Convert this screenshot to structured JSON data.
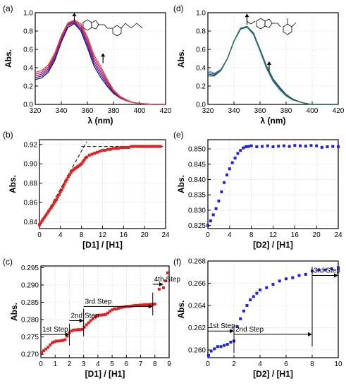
{
  "chart_data": [
    {
      "id": "a",
      "panel_label": "(a)",
      "type": "line",
      "xlabel": "λ (nm)",
      "ylabel": "Abs.",
      "xlim": [
        320,
        420
      ],
      "ylim": [
        0.0,
        1.0
      ],
      "xticks": [
        "320",
        "340",
        "360",
        "380",
        "400",
        "420"
      ],
      "yticks": [
        "0.0",
        "0.2",
        "0.4",
        "0.6",
        "0.8",
        "1.0"
      ],
      "x": [
        320,
        325,
        330,
        335,
        340,
        345,
        350,
        355,
        360,
        365,
        370,
        375,
        380,
        385,
        390,
        395,
        400,
        405,
        410,
        415,
        420
      ],
      "series": [
        {
          "color": "#1a1a7a",
          "values": [
            0.27,
            0.29,
            0.35,
            0.48,
            0.68,
            0.84,
            0.88,
            0.8,
            0.62,
            0.42,
            0.3,
            0.2,
            0.12,
            0.07,
            0.04,
            0.02,
            0.01,
            0.005,
            0.0,
            0.0,
            0.0
          ]
        },
        {
          "color": "#5a1f8c",
          "values": [
            0.29,
            0.31,
            0.37,
            0.5,
            0.7,
            0.86,
            0.89,
            0.82,
            0.65,
            0.45,
            0.33,
            0.22,
            0.13,
            0.07,
            0.04,
            0.02,
            0.01,
            0.005,
            0.0,
            0.0,
            0.0
          ]
        },
        {
          "color": "#8a2090",
          "values": [
            0.31,
            0.33,
            0.39,
            0.52,
            0.72,
            0.87,
            0.9,
            0.84,
            0.68,
            0.48,
            0.36,
            0.24,
            0.14,
            0.08,
            0.04,
            0.02,
            0.01,
            0.005,
            0.0,
            0.0,
            0.0
          ]
        },
        {
          "color": "#c2286e",
          "values": [
            0.33,
            0.35,
            0.41,
            0.54,
            0.73,
            0.88,
            0.91,
            0.86,
            0.71,
            0.51,
            0.39,
            0.26,
            0.15,
            0.08,
            0.04,
            0.02,
            0.01,
            0.005,
            0.0,
            0.0,
            0.0
          ]
        },
        {
          "color": "#e04a3a",
          "values": [
            0.35,
            0.37,
            0.43,
            0.56,
            0.75,
            0.89,
            0.92,
            0.88,
            0.74,
            0.54,
            0.42,
            0.28,
            0.16,
            0.09,
            0.05,
            0.02,
            0.01,
            0.005,
            0.0,
            0.0,
            0.0
          ]
        }
      ],
      "arrows": [
        {
          "x": 350,
          "y_from": 0.9,
          "y_to": 1.0
        },
        {
          "x": 372,
          "y_from": 0.45,
          "y_to": 0.56
        }
      ]
    },
    {
      "id": "d",
      "panel_label": "(d)",
      "type": "line",
      "xlabel": "λ (nm)",
      "ylabel": "Abs.",
      "xlim": [
        320,
        420
      ],
      "ylim": [
        0.0,
        1.0
      ],
      "xticks": [
        "320",
        "340",
        "360",
        "380",
        "400",
        "420"
      ],
      "yticks": [
        "0.0",
        "0.2",
        "0.4",
        "0.6",
        "0.8",
        "1.0"
      ],
      "x": [
        320,
        325,
        330,
        335,
        340,
        345,
        350,
        355,
        360,
        365,
        370,
        375,
        380,
        385,
        390,
        395,
        400,
        405,
        410,
        415,
        420
      ],
      "series": [
        {
          "color": "#3aa0c0",
          "values": [
            0.37,
            0.34,
            0.38,
            0.5,
            0.69,
            0.82,
            0.84,
            0.76,
            0.58,
            0.39,
            0.25,
            0.16,
            0.09,
            0.05,
            0.03,
            0.01,
            0.0,
            0.0,
            0.0,
            0.0,
            0.0
          ]
        },
        {
          "color": "#2a5aa0",
          "values": [
            0.35,
            0.33,
            0.38,
            0.5,
            0.69,
            0.82,
            0.845,
            0.77,
            0.59,
            0.4,
            0.26,
            0.17,
            0.1,
            0.05,
            0.03,
            0.01,
            0.0,
            0.0,
            0.0,
            0.0,
            0.0
          ]
        },
        {
          "color": "#6a2a8a",
          "values": [
            0.33,
            0.32,
            0.37,
            0.5,
            0.69,
            0.83,
            0.85,
            0.77,
            0.6,
            0.41,
            0.27,
            0.18,
            0.1,
            0.06,
            0.03,
            0.01,
            0.0,
            0.0,
            0.0,
            0.0,
            0.0
          ]
        },
        {
          "color": "#1f7a3a",
          "values": [
            0.31,
            0.31,
            0.37,
            0.5,
            0.69,
            0.83,
            0.85,
            0.78,
            0.6,
            0.42,
            0.28,
            0.19,
            0.11,
            0.06,
            0.03,
            0.01,
            0.0,
            0.0,
            0.0,
            0.0,
            0.0
          ]
        }
      ],
      "arrows": [
        {
          "x": 350,
          "y_from": 0.87,
          "y_to": 0.99
        },
        {
          "x": 367,
          "y_from": 0.37,
          "y_to": 0.47
        }
      ]
    },
    {
      "id": "b",
      "panel_label": "(b)",
      "type": "scatter",
      "xlabel": "[D1] / [H1]",
      "ylabel": "Abs.",
      "xlim": [
        0,
        24
      ],
      "ylim": [
        0.833,
        0.925
      ],
      "xticks": [
        "0",
        "4",
        "8",
        "12",
        "16",
        "20",
        "24"
      ],
      "xtick_values": [
        0,
        4,
        8,
        12,
        16,
        20,
        24
      ],
      "yticks": [
        "0.84",
        "0.86",
        "0.88",
        "0.90",
        "0.92"
      ],
      "ytick_values": [
        0.84,
        0.86,
        0.88,
        0.9,
        0.92
      ],
      "marker_color": "#e02020",
      "x": [
        0,
        0.25,
        0.5,
        0.75,
        1,
        1.25,
        1.5,
        1.75,
        2,
        2.25,
        2.5,
        2.75,
        3,
        3.25,
        3.5,
        3.75,
        4,
        4.25,
        4.5,
        4.75,
        5,
        5.25,
        5.5,
        5.75,
        6,
        6.25,
        6.5,
        6.75,
        7,
        7.25,
        7.5,
        7.75,
        8,
        8.25,
        8.5,
        8.75,
        9,
        9.5,
        10,
        10.5,
        11,
        11.5,
        12,
        12.5,
        13,
        13.5,
        14,
        14.5,
        15,
        15.5,
        16,
        16.5,
        17,
        17.5,
        18,
        18.5,
        19,
        19.5,
        20,
        20.5,
        21,
        21.5,
        22,
        22.5,
        23
      ],
      "y": [
        0.837,
        0.839,
        0.841,
        0.843,
        0.845,
        0.847,
        0.849,
        0.851,
        0.853,
        0.855,
        0.857,
        0.859,
        0.861,
        0.863,
        0.866,
        0.868,
        0.871,
        0.873,
        0.876,
        0.879,
        0.882,
        0.884,
        0.887,
        0.889,
        0.891,
        0.893,
        0.894,
        0.895,
        0.896,
        0.897,
        0.898,
        0.899,
        0.9,
        0.902,
        0.904,
        0.906,
        0.907,
        0.909,
        0.91,
        0.911,
        0.912,
        0.913,
        0.914,
        0.914,
        0.915,
        0.915,
        0.916,
        0.916,
        0.916,
        0.917,
        0.917,
        0.917,
        0.917,
        0.918,
        0.918,
        0.918,
        0.918,
        0.918,
        0.918,
        0.918,
        0.918,
        0.918,
        0.918,
        0.918,
        0.918
      ],
      "dashed_lines": [
        [
          0,
          0.835,
          9,
          0.923
        ],
        [
          8,
          0.918,
          23.5,
          0.918
        ]
      ]
    },
    {
      "id": "e",
      "panel_label": "(e)",
      "type": "scatter",
      "xlabel": "[D2] / [H1]",
      "ylabel": "Abs.",
      "xlim": [
        0,
        24
      ],
      "ylim": [
        0.824,
        0.853
      ],
      "xticks": [
        "0",
        "4",
        "8",
        "12",
        "16",
        "20",
        "24"
      ],
      "xtick_values": [
        0,
        4,
        8,
        12,
        16,
        20,
        24
      ],
      "yticks": [
        "0.825",
        "0.830",
        "0.835",
        "0.840",
        "0.845",
        "0.850"
      ],
      "ytick_values": [
        0.825,
        0.83,
        0.835,
        0.84,
        0.845,
        0.85
      ],
      "marker_color": "#2020e0",
      "x": [
        0,
        0.5,
        1,
        1.5,
        2,
        2.5,
        3,
        3.5,
        4,
        4.5,
        5,
        5.5,
        6,
        6.5,
        7,
        7.5,
        8,
        9,
        10,
        11,
        12,
        13,
        14,
        15,
        16,
        17,
        18,
        19,
        20,
        21,
        22,
        23,
        24
      ],
      "y": [
        0.825,
        0.8265,
        0.8285,
        0.8305,
        0.833,
        0.836,
        0.839,
        0.8415,
        0.8435,
        0.8455,
        0.847,
        0.8485,
        0.8495,
        0.8503,
        0.8507,
        0.8508,
        0.851,
        0.8507,
        0.8508,
        0.851,
        0.8507,
        0.8509,
        0.851,
        0.8508,
        0.8511,
        0.851,
        0.8509,
        0.8511,
        0.851,
        0.8505,
        0.8507,
        0.8508,
        0.8507
      ]
    },
    {
      "id": "c",
      "panel_label": "(c)",
      "type": "scatter",
      "xlabel": "[D1] / [H1]",
      "ylabel": "Abs.",
      "xlim": [
        0,
        9
      ],
      "ylim": [
        0.269,
        0.2955
      ],
      "xticks": [
        "0",
        "1",
        "2",
        "3",
        "4",
        "5",
        "6",
        "7",
        "8",
        "9"
      ],
      "xtick_values": [
        0,
        1,
        2,
        3,
        4,
        5,
        6,
        7,
        8,
        9
      ],
      "yticks": [
        "0.270",
        "0.275",
        "0.280",
        "0.285",
        "0.290",
        "0.295"
      ],
      "ytick_values": [
        0.27,
        0.275,
        0.28,
        0.285,
        0.29,
        0.295
      ],
      "marker_color": "#e02020",
      "x": [
        0.05,
        0.2,
        0.35,
        0.5,
        0.65,
        0.8,
        0.95,
        1.1,
        1.25,
        1.4,
        1.55,
        1.7,
        1.85,
        2.0,
        2.15,
        2.3,
        2.45,
        2.6,
        2.75,
        2.9,
        3.05,
        3.2,
        3.35,
        3.5,
        3.65,
        3.8,
        3.95,
        4.1,
        4.25,
        4.4,
        4.55,
        4.7,
        4.85,
        5.0,
        5.15,
        5.3,
        5.45,
        5.6,
        5.75,
        5.9,
        6.05,
        6.2,
        6.35,
        6.5,
        6.65,
        6.8,
        6.95,
        7.1,
        7.25,
        7.4,
        7.55,
        7.7,
        7.85,
        8.0,
        8.3,
        8.6,
        8.75,
        8.9
      ],
      "y": [
        0.2705,
        0.271,
        0.2715,
        0.272,
        0.2727,
        0.2733,
        0.2736,
        0.2738,
        0.2738,
        0.2739,
        0.274,
        0.2742,
        0.2752,
        0.2762,
        0.2767,
        0.277,
        0.277,
        0.2771,
        0.2771,
        0.2772,
        0.2778,
        0.2785,
        0.2791,
        0.2797,
        0.2802,
        0.2808,
        0.2812,
        0.2813,
        0.2813,
        0.2814,
        0.2815,
        0.2819,
        0.2824,
        0.2828,
        0.2831,
        0.2831,
        0.2833,
        0.2835,
        0.2836,
        0.2837,
        0.2838,
        0.2838,
        0.2839,
        0.284,
        0.2841,
        0.2841,
        0.2842,
        0.2842,
        0.2843,
        0.2843,
        0.2843,
        0.2844,
        0.2844,
        0.2845,
        0.2888,
        0.2892,
        0.2912,
        0.2935
      ],
      "annotations": [
        {
          "text": "1st Step",
          "x": 0,
          "y": 0.2757,
          "x_end": 2,
          "vline_x": 2,
          "vline_y": [
            0.2725,
            0.2788
          ]
        },
        {
          "text": "2nd Step",
          "x": 2,
          "y": 0.2797,
          "x_end": 3,
          "vline_x": 3,
          "vline_y": [
            0.2752,
            0.2832
          ]
        },
        {
          "text": "3rd Step",
          "x": 3,
          "y": 0.2838,
          "x_end": 7.85,
          "vline_x": 7.85,
          "vline_y": [
            0.2812,
            0.2878
          ]
        },
        {
          "text": "4th Step",
          "x": 7.85,
          "y": 0.2902,
          "x_end": 8.6,
          "vline_x": null,
          "vline_y": null
        }
      ]
    },
    {
      "id": "f",
      "panel_label": "(f)",
      "type": "scatter",
      "xlabel": "[D2] / [H1]",
      "ylabel": "Abs.",
      "xlim": [
        0,
        10
      ],
      "ylim": [
        0.2593,
        0.268
      ],
      "xticks": [
        "0",
        "2",
        "4",
        "6",
        "8",
        "10"
      ],
      "xtick_values": [
        0,
        2,
        4,
        6,
        8,
        10
      ],
      "yticks": [
        "0.260",
        "0.262",
        "0.264",
        "0.266",
        "0.268"
      ],
      "ytick_values": [
        0.26,
        0.262,
        0.264,
        0.266,
        0.268
      ],
      "marker_color": "#2020e0",
      "x": [
        0.05,
        0.25,
        0.5,
        0.75,
        1.0,
        1.25,
        1.5,
        1.75,
        2.0,
        2.25,
        2.5,
        2.75,
        3.0,
        3.25,
        3.5,
        3.75,
        4.0,
        4.5,
        5.0,
        5.5,
        6.0,
        6.5,
        7.0,
        7.5,
        8.0,
        8.5,
        9.0,
        9.5,
        10.0
      ],
      "y": [
        0.2595,
        0.2599,
        0.2601,
        0.2603,
        0.2603,
        0.2604,
        0.2605,
        0.2607,
        0.2608,
        0.2621,
        0.2628,
        0.2635,
        0.264,
        0.2645,
        0.2648,
        0.2651,
        0.2654,
        0.2656,
        0.2659,
        0.2662,
        0.2664,
        0.2665,
        0.2667,
        0.2668,
        0.2671,
        0.2672,
        0.2672,
        0.2673,
        0.2674
      ],
      "annotations": [
        {
          "text": "1st Step",
          "x": 0,
          "y": 0.2617,
          "x_end": 2,
          "vline_x": 2,
          "vline_y": [
            0.2597,
            0.2622
          ]
        },
        {
          "text": "2nd Step",
          "x": 2,
          "y": 0.2614,
          "x_end": 8,
          "vline_x": 8,
          "vline_y": [
            0.2603,
            0.2675
          ]
        },
        {
          "text": "3rd Step",
          "x": 8,
          "y": 0.2667,
          "x_end": 10,
          "vline_x": null,
          "vline_y": null
        }
      ]
    }
  ]
}
